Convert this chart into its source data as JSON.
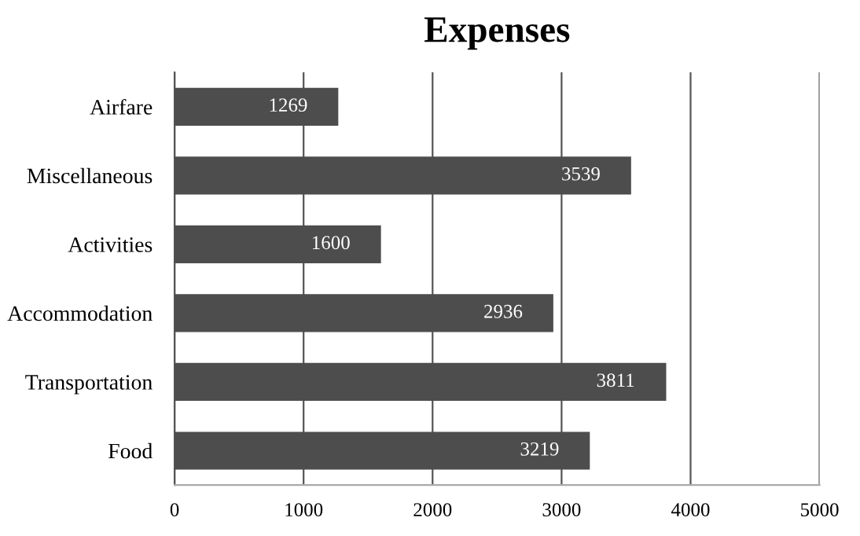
{
  "chart_data": {
    "type": "bar",
    "orientation": "horizontal",
    "title": "Expenses",
    "categories": [
      "Airfare",
      "Miscellaneous",
      "Activities",
      "Accommodation",
      "Transportation",
      "Food"
    ],
    "values": [
      1269,
      3539,
      1600,
      2936,
      3811,
      3219
    ],
    "color": "#4d4d4d",
    "xlim": [
      0,
      5000
    ],
    "xticks": [
      0,
      1000,
      2000,
      3000,
      4000,
      5000
    ],
    "grid": "x",
    "data_labels": true
  }
}
